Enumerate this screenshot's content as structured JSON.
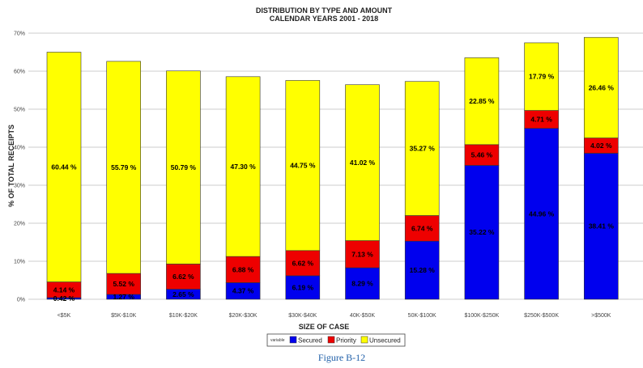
{
  "chart_data": {
    "type": "bar",
    "stacked": true,
    "title": [
      "DISTRIBUTION BY TYPE AND AMOUNT",
      "CALENDAR YEARS 2001 - 2018"
    ],
    "xlabel": "SIZE OF CASE",
    "ylabel": "% OF TOTAL RECEIPTS",
    "ylim": [
      0,
      70
    ],
    "yticks": [
      0,
      10,
      20,
      30,
      40,
      50,
      60,
      70
    ],
    "ytick_labels": [
      "0%",
      "10%",
      "20%",
      "30%",
      "40%",
      "50%",
      "60%",
      "70%"
    ],
    "grid": true,
    "categories": [
      "<$5K",
      "$5K-$10K",
      "$10K-$20K",
      "$20K-$30K",
      "$30K-$40K",
      "40K-$50K",
      "50K-$100K",
      "$100K-$250K",
      "$250K-$500K",
      ">$500K"
    ],
    "series": [
      {
        "name": "Secured",
        "color": "#0000ee",
        "values": [
          0.42,
          1.27,
          2.65,
          4.37,
          6.19,
          8.29,
          15.28,
          35.22,
          44.96,
          38.41
        ],
        "labels": [
          "0.42 %",
          "1.27 %",
          "2.65 %",
          "4.37 %",
          "6.19 %",
          "8.29 %",
          "15.28 %",
          "35.22 %",
          "44.96 %",
          "38.41 %"
        ]
      },
      {
        "name": "Priority",
        "color": "#ee0000",
        "values": [
          4.14,
          5.52,
          6.62,
          6.88,
          6.62,
          7.13,
          6.74,
          5.46,
          4.71,
          4.02
        ],
        "labels": [
          "4.14 %",
          "5.52 %",
          "6.62 %",
          "6.88 %",
          "6.62 %",
          "7.13 %",
          "6.74 %",
          "5.46 %",
          "4.71 %",
          "4.02 %"
        ]
      },
      {
        "name": "Unsecured",
        "color": "#ffff00",
        "values": [
          60.44,
          55.79,
          50.79,
          47.3,
          44.75,
          41.02,
          35.27,
          22.85,
          17.79,
          26.46
        ],
        "labels": [
          "60.44 %",
          "55.79 %",
          "50.79 %",
          "47.30 %",
          "44.75 %",
          "41.02 %",
          "35.27 %",
          "22.85 %",
          "17.79 %",
          "26.46 %"
        ]
      }
    ],
    "legend": {
      "title": "variable",
      "placement": "bottom-center"
    }
  },
  "caption": "Figure B-12"
}
